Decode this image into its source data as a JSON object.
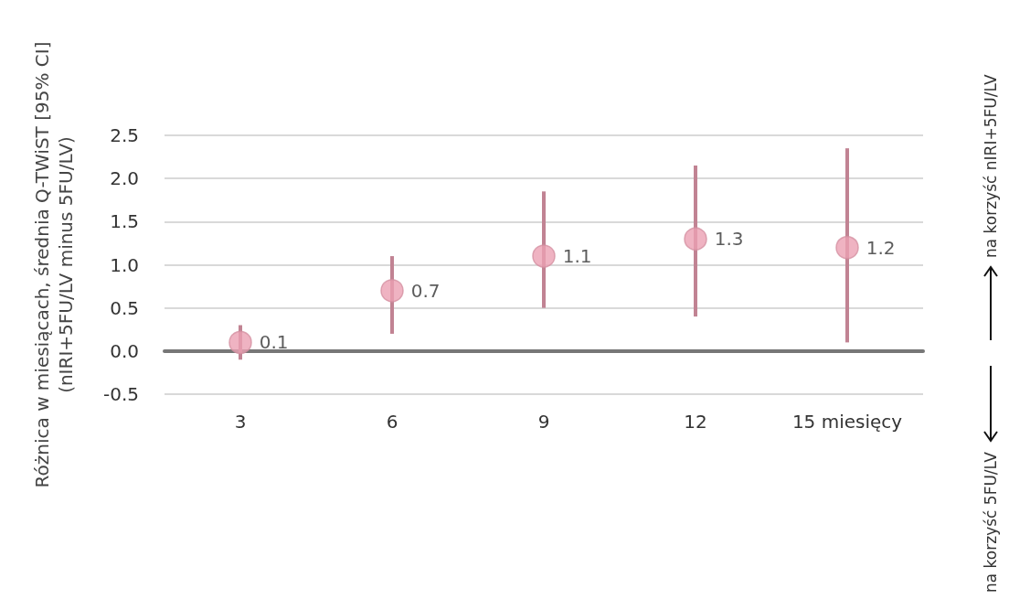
{
  "chart_data": {
    "type": "scatter",
    "ylabel": "Różnica w miesiącach, średnia Q-TWiST [95% CI]\n(nIRI+5FU/LV minus 5FU/LV)",
    "categories": [
      "3",
      "6",
      "9",
      "12",
      "15 miesięcy"
    ],
    "series": [
      {
        "color": "#eba0b3",
        "values": [
          0.1,
          0.7,
          1.1,
          1.3,
          1.2
        ],
        "errors": [
          [
            -0.1,
            0.3
          ],
          [
            0.2,
            1.1
          ],
          [
            0.5,
            1.85
          ],
          [
            0.4,
            2.15
          ],
          [
            0.1,
            2.35
          ]
        ]
      }
    ],
    "ylim": [
      -0.5,
      2.5
    ],
    "yticks": [
      -0.5,
      {
        "value": 0,
        "label": "0.0"
      },
      0.5,
      {
        "value": 1,
        "label": "1.0"
      },
      1.5,
      {
        "value": 2,
        "label": "2.0"
      },
      2.5
    ],
    "grid": "y",
    "marker": "circle",
    "data_labels": true,
    "annotations": [
      "na korzyść nIRI+5FU/LV",
      "na korzyść 5FU/LV"
    ]
  }
}
